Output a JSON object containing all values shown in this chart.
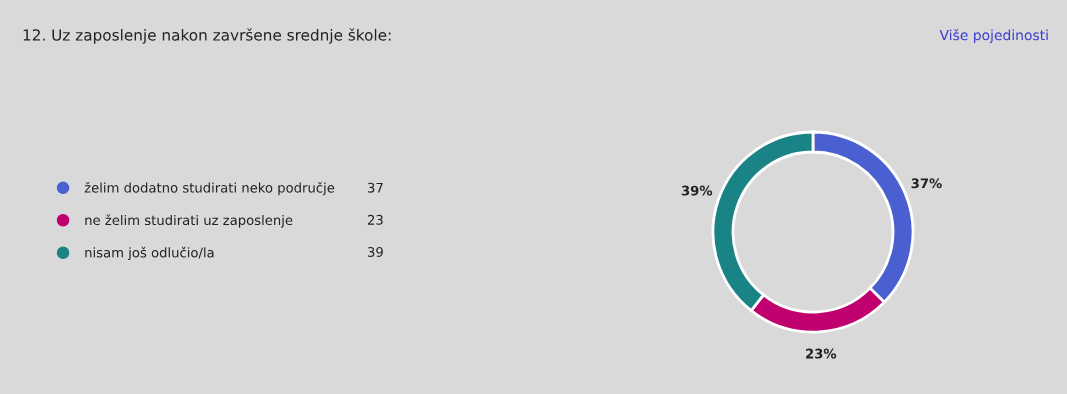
{
  "chart_data": {
    "type": "donut",
    "title": "12. Uz zaposlenje nakon završene srednje škole:",
    "annotations": [
      "Više pojedinosti",
      "37",
      "23",
      "39"
    ],
    "categories": [
      "želim dodatno studirati neko područje",
      "ne želim studirati uz zaposlenje",
      "nisam još odlučio/la"
    ],
    "values": [
      37,
      23,
      39
    ],
    "colors": [
      "#4a5fd0",
      "#c0006f",
      "#1a8385"
    ],
    "value_labels": [
      "37%",
      "23%",
      "39%"
    ],
    "legend": "left"
  }
}
